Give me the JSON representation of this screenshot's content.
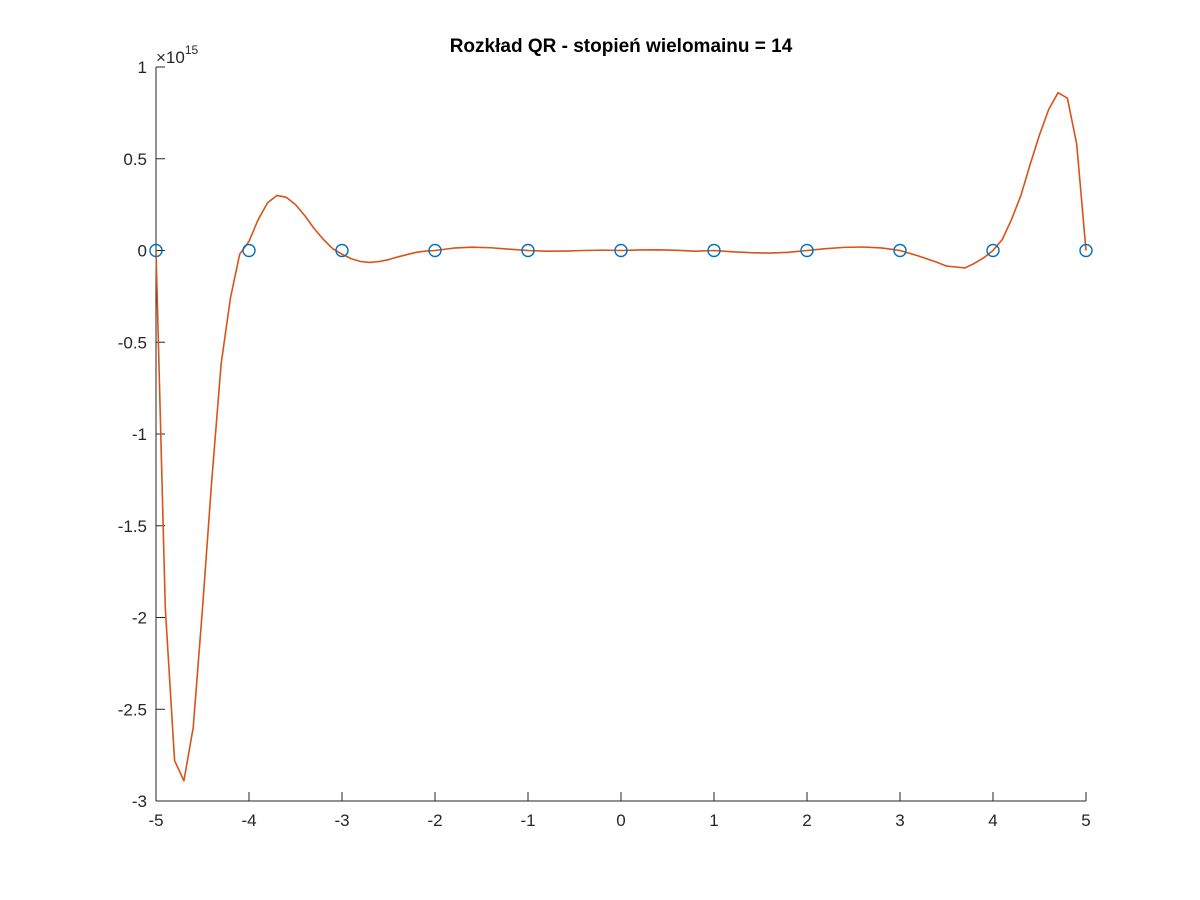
{
  "chart_data": {
    "type": "line",
    "title": "Rozkład QR - stopień wielomainu = 14",
    "xlabel": "",
    "ylabel": "",
    "xlim": [
      -5,
      5
    ],
    "ylim": [
      -3,
      1
    ],
    "x_ticks": [
      -5,
      -4,
      -3,
      -2,
      -1,
      0,
      1,
      2,
      3,
      4,
      5
    ],
    "x_tick_labels": [
      "-5",
      "-4",
      "-3",
      "-2",
      "-1",
      "0",
      "1",
      "2",
      "3",
      "4",
      "5"
    ],
    "y_ticks": [
      -3,
      -2.5,
      -2,
      -1.5,
      -1,
      -0.5,
      0,
      0.5,
      1
    ],
    "y_tick_labels": [
      "-3",
      "-2.5",
      "-2",
      "-1.5",
      "-1",
      "-0.5",
      "0",
      "0.5",
      "1"
    ],
    "y_exponent": {
      "prefix": "×10",
      "power": "15"
    },
    "grid": false,
    "legend": null,
    "series": [
      {
        "style": "markers",
        "marker": "circle",
        "color": "#0072BD",
        "x": [
          -5,
          -4,
          -3,
          -2,
          -1,
          0,
          1,
          2,
          3,
          4,
          5
        ],
        "y": [
          0,
          0,
          0,
          0,
          0,
          0,
          0,
          0,
          0,
          0,
          0
        ]
      },
      {
        "style": "line",
        "color": "#D95319",
        "x": [
          -5,
          -4.9,
          -4.8,
          -4.7,
          -4.6,
          -4.5,
          -4.4,
          -4.3,
          -4.2,
          -4.1,
          -4.0,
          -3.9,
          -3.8,
          -3.7,
          -3.6,
          -3.5,
          -3.4,
          -3.3,
          -3.2,
          -3.1,
          -3.0,
          -2.9,
          -2.8,
          -2.7,
          -2.6,
          -2.5,
          -2.4,
          -2.3,
          -2.2,
          -2.1,
          -2.0,
          -1.8,
          -1.6,
          -1.4,
          -1.2,
          -1.0,
          -0.8,
          -0.6,
          -0.4,
          -0.2,
          0.0,
          0.2,
          0.4,
          0.6,
          0.8,
          1.0,
          1.2,
          1.4,
          1.6,
          1.8,
          2.0,
          2.2,
          2.4,
          2.6,
          2.8,
          3.0,
          3.2,
          3.4,
          3.5,
          3.6,
          3.7,
          3.8,
          3.9,
          4.0,
          4.1,
          4.2,
          4.3,
          4.4,
          4.5,
          4.6,
          4.7,
          4.8,
          4.9,
          5.0
        ],
        "y": [
          0,
          -1.95,
          -2.78,
          -2.89,
          -2.6,
          -1.95,
          -1.25,
          -0.62,
          -0.26,
          -0.02,
          0.05,
          0.17,
          0.26,
          0.3,
          0.29,
          0.25,
          0.19,
          0.12,
          0.06,
          0.01,
          -0.02,
          -0.045,
          -0.06,
          -0.065,
          -0.06,
          -0.05,
          -0.035,
          -0.022,
          -0.01,
          -0.003,
          0.0,
          0.013,
          0.018,
          0.015,
          0.007,
          0.0,
          -0.004,
          -0.003,
          0.0,
          0.002,
          0.0,
          0.003,
          0.004,
          0.001,
          -0.004,
          0.0,
          -0.007,
          -0.012,
          -0.014,
          -0.01,
          0.0,
          0.01,
          0.017,
          0.019,
          0.014,
          0.0,
          -0.03,
          -0.065,
          -0.085,
          -0.09,
          -0.095,
          -0.07,
          -0.04,
          0.0,
          0.06,
          0.17,
          0.3,
          0.47,
          0.63,
          0.77,
          0.86,
          0.83,
          0.58,
          0.0
        ]
      }
    ]
  }
}
